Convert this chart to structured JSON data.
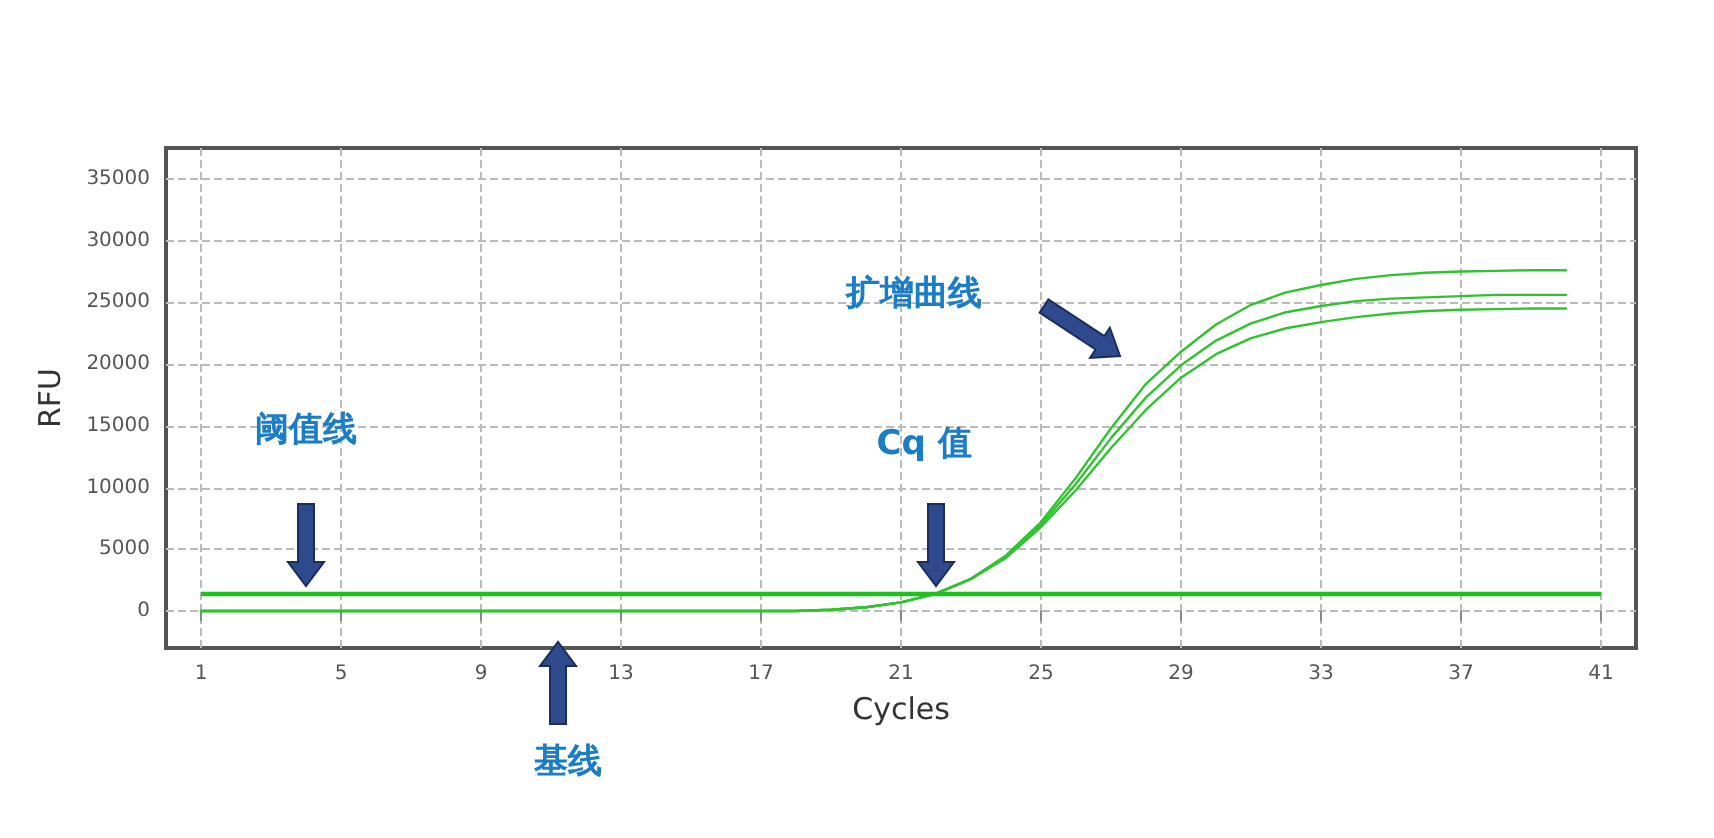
{
  "chart_data": {
    "type": "line",
    "xlabel": "Cycles",
    "ylabel": "RFU",
    "xlim": [
      0,
      42
    ],
    "xticks": [
      1,
      5,
      9,
      13,
      17,
      21,
      25,
      29,
      33,
      37,
      41
    ],
    "ylim": [
      -3000,
      37500
    ],
    "yticks": [
      0,
      5000,
      10000,
      15000,
      20000,
      25000,
      30000,
      35000
    ],
    "grid": true,
    "marker": "none",
    "line_style": "solid",
    "x": [
      1,
      2,
      3,
      4,
      5,
      6,
      7,
      8,
      9,
      10,
      11,
      12,
      13,
      14,
      15,
      16,
      17,
      18,
      19,
      20,
      21,
      22,
      23,
      24,
      25,
      26,
      27,
      28,
      29,
      30,
      31,
      32,
      33,
      34,
      35,
      36,
      37,
      38,
      39,
      40
    ],
    "series": [
      {
        "color": "#2fc42f",
        "values": [
          0,
          0,
          0,
          0,
          0,
          0,
          0,
          0,
          0,
          0,
          0,
          0,
          0,
          0,
          0,
          0,
          0,
          0,
          100,
          300,
          700,
          1400,
          2600,
          4500,
          7200,
          10800,
          14800,
          18400,
          21000,
          23200,
          24800,
          25800,
          26400,
          26900,
          27200,
          27400,
          27500,
          27550,
          27600,
          27600
        ]
      },
      {
        "color": "#2fc42f",
        "values": [
          0,
          0,
          0,
          0,
          0,
          0,
          0,
          0,
          0,
          0,
          0,
          0,
          0,
          0,
          0,
          0,
          0,
          0,
          100,
          300,
          700,
          1400,
          2600,
          4400,
          7000,
          10300,
          14000,
          17300,
          19900,
          21900,
          23300,
          24200,
          24700,
          25100,
          25300,
          25400,
          25500,
          25600,
          25600,
          25600
        ]
      },
      {
        "color": "#2fc42f",
        "values": [
          0,
          0,
          0,
          0,
          0,
          0,
          0,
          0,
          0,
          0,
          0,
          0,
          0,
          0,
          0,
          0,
          0,
          0,
          100,
          300,
          700,
          1400,
          2600,
          4300,
          6800,
          9800,
          13200,
          16300,
          18900,
          20800,
          22100,
          22900,
          23400,
          23800,
          24100,
          24300,
          24400,
          24450,
          24500,
          24500
        ]
      }
    ],
    "ref_lines": [
      {
        "axis": "y",
        "value": 1400,
        "color": "#1fbf1f"
      }
    ],
    "annotations": [
      "阈值线",
      "基线",
      "Cq 值",
      "扩增曲线"
    ]
  }
}
